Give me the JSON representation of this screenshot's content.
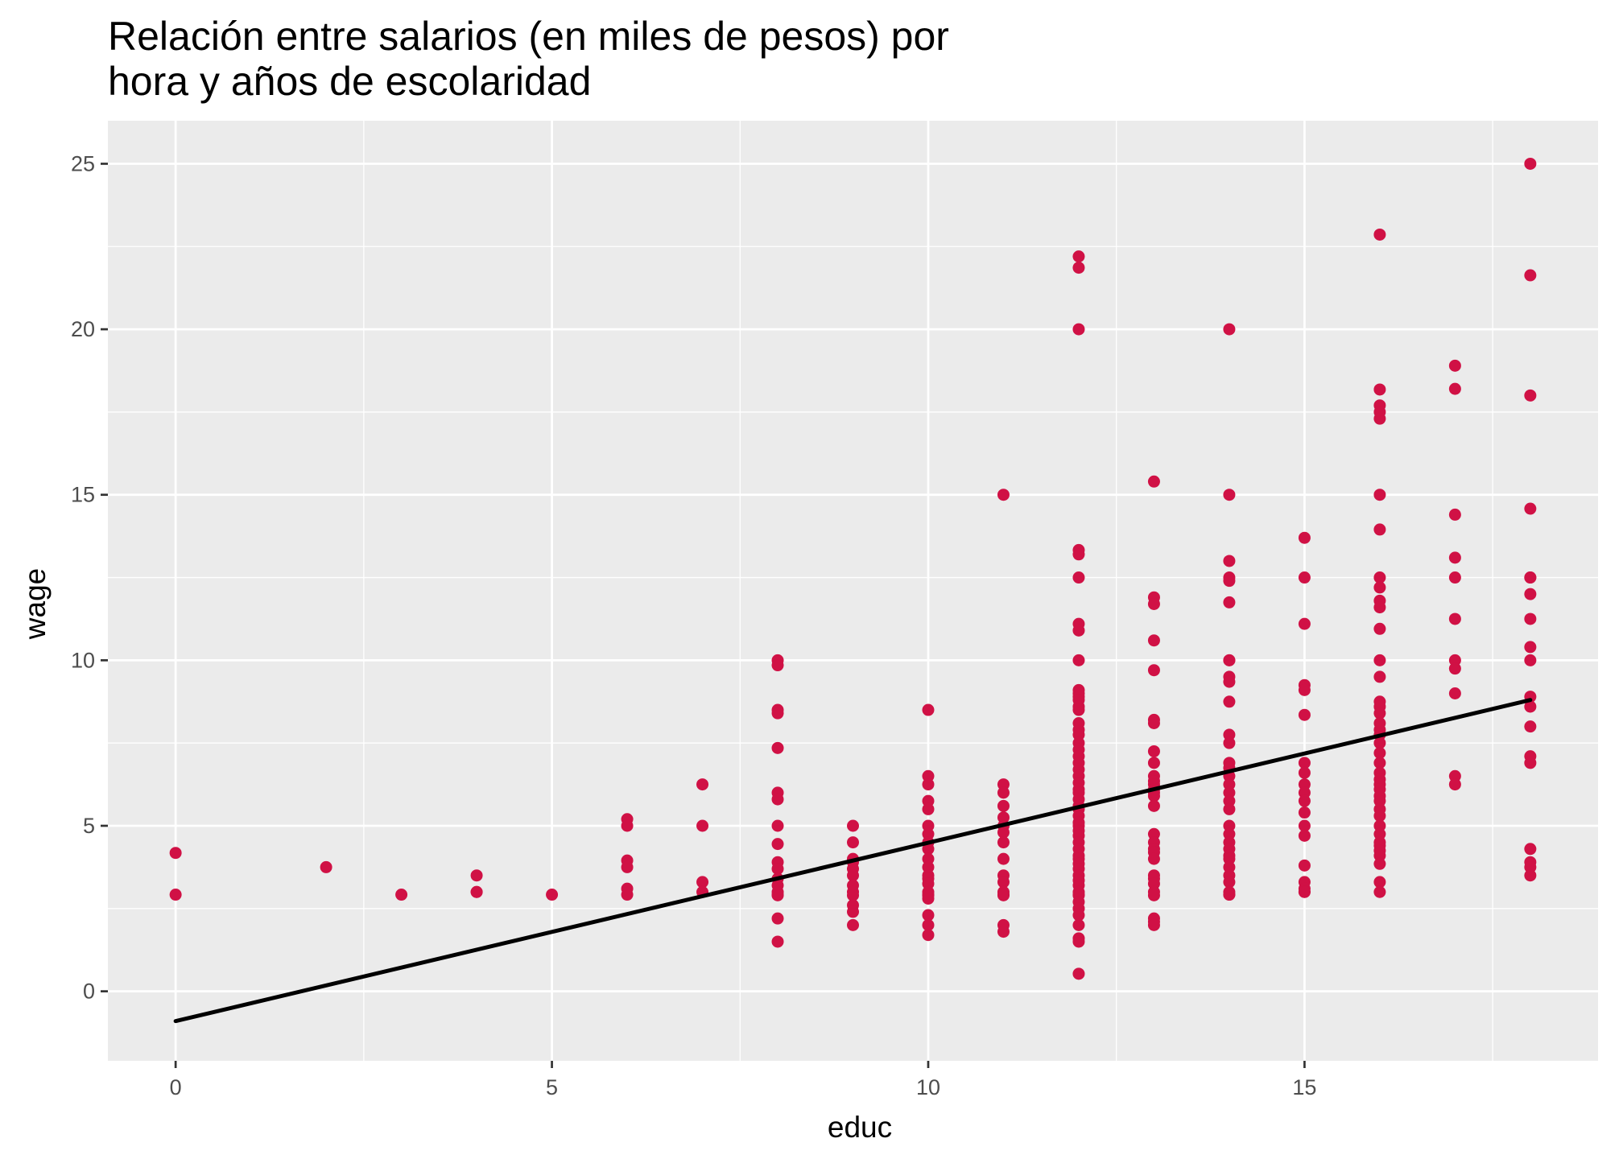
{
  "chart_data": {
    "type": "scatter",
    "title_lines": [
      "Relación entre salarios (en miles de pesos) por",
      "hora y años de escolaridad"
    ],
    "xlabel": "educ",
    "ylabel": "wage",
    "xlim": [
      -0.9,
      18.9
    ],
    "ylim": [
      -2.1,
      26.3
    ],
    "x_ticks": [
      0,
      5,
      10,
      15
    ],
    "y_ticks": [
      0,
      5,
      10,
      15,
      20,
      25
    ],
    "x_tick_labels": [
      "0",
      "5",
      "10",
      "15"
    ],
    "y_tick_labels": [
      "0",
      "5",
      "10",
      "15",
      "20",
      "25"
    ],
    "grid": true,
    "colors": {
      "panel": "#ebebeb",
      "grid": "#ffffff",
      "points": "#d01145",
      "line": "#000000"
    },
    "fit_line": {
      "x": [
        0,
        18
      ],
      "y": [
        -0.9,
        8.8
      ]
    },
    "points": [
      [
        0,
        4.18
      ],
      [
        0,
        2.92
      ],
      [
        2,
        3.75
      ],
      [
        3,
        2.92
      ],
      [
        4,
        3.5
      ],
      [
        4,
        3.0
      ],
      [
        4,
        3.0
      ],
      [
        5,
        2.92
      ],
      [
        6,
        5.2
      ],
      [
        6,
        5.0
      ],
      [
        6,
        3.95
      ],
      [
        6,
        3.75
      ],
      [
        6,
        3.1
      ],
      [
        6,
        2.92
      ],
      [
        7,
        6.25
      ],
      [
        7,
        5.0
      ],
      [
        7,
        3.3
      ],
      [
        7,
        3.0
      ],
      [
        8,
        10.0
      ],
      [
        8,
        9.85
      ],
      [
        8,
        8.5
      ],
      [
        8,
        8.4
      ],
      [
        8,
        7.35
      ],
      [
        8,
        6.0
      ],
      [
        8,
        5.8
      ],
      [
        8,
        5.0
      ],
      [
        8,
        4.45
      ],
      [
        8,
        3.9
      ],
      [
        8,
        3.7
      ],
      [
        8,
        3.4
      ],
      [
        8,
        3.2
      ],
      [
        8,
        3.0
      ],
      [
        8,
        2.92
      ],
      [
        8,
        2.9
      ],
      [
        8,
        2.2
      ],
      [
        8,
        1.5
      ],
      [
        9,
        5.0
      ],
      [
        9,
        4.5
      ],
      [
        9,
        4.0
      ],
      [
        9,
        3.9
      ],
      [
        9,
        3.7
      ],
      [
        9,
        3.5
      ],
      [
        9,
        3.2
      ],
      [
        9,
        3.0
      ],
      [
        9,
        2.9
      ],
      [
        9,
        2.6
      ],
      [
        9,
        2.4
      ],
      [
        9,
        2.0
      ],
      [
        10,
        8.5
      ],
      [
        10,
        6.5
      ],
      [
        10,
        6.25
      ],
      [
        10,
        5.75
      ],
      [
        10,
        5.5
      ],
      [
        10,
        5.0
      ],
      [
        10,
        4.75
      ],
      [
        10,
        4.5
      ],
      [
        10,
        4.3
      ],
      [
        10,
        4.0
      ],
      [
        10,
        3.75
      ],
      [
        10,
        3.5
      ],
      [
        10,
        3.4
      ],
      [
        10,
        3.25
      ],
      [
        10,
        3.0
      ],
      [
        10,
        2.92
      ],
      [
        10,
        2.9
      ],
      [
        10,
        2.8
      ],
      [
        10,
        2.3
      ],
      [
        10,
        2.0
      ],
      [
        10,
        1.7
      ],
      [
        11,
        15.0
      ],
      [
        11,
        6.25
      ],
      [
        11,
        6.0
      ],
      [
        11,
        5.6
      ],
      [
        11,
        5.25
      ],
      [
        11,
        5.0
      ],
      [
        11,
        4.8
      ],
      [
        11,
        4.5
      ],
      [
        11,
        4.0
      ],
      [
        11,
        3.5
      ],
      [
        11,
        3.3
      ],
      [
        11,
        3.0
      ],
      [
        11,
        2.92
      ],
      [
        11,
        2.9
      ],
      [
        11,
        2.0
      ],
      [
        11,
        1.8
      ],
      [
        12,
        22.2
      ],
      [
        12,
        21.86
      ],
      [
        12,
        20.0
      ],
      [
        12,
        13.33
      ],
      [
        12,
        13.2
      ],
      [
        12,
        12.5
      ],
      [
        12,
        11.1
      ],
      [
        12,
        10.9
      ],
      [
        12,
        10.0
      ],
      [
        12,
        9.1
      ],
      [
        12,
        9.0
      ],
      [
        12,
        8.9
      ],
      [
        12,
        8.8
      ],
      [
        12,
        8.6
      ],
      [
        12,
        8.5
      ],
      [
        12,
        8.1
      ],
      [
        12,
        7.9
      ],
      [
        12,
        7.75
      ],
      [
        12,
        7.5
      ],
      [
        12,
        7.3
      ],
      [
        12,
        7.1
      ],
      [
        12,
        6.9
      ],
      [
        12,
        6.7
      ],
      [
        12,
        6.5
      ],
      [
        12,
        6.3
      ],
      [
        12,
        6.1
      ],
      [
        12,
        6.0
      ],
      [
        12,
        5.8
      ],
      [
        12,
        5.6
      ],
      [
        12,
        5.5
      ],
      [
        12,
        5.3
      ],
      [
        12,
        5.1
      ],
      [
        12,
        5.0
      ],
      [
        12,
        4.85
      ],
      [
        12,
        4.7
      ],
      [
        12,
        4.5
      ],
      [
        12,
        4.3
      ],
      [
        12,
        4.1
      ],
      [
        12,
        4.0
      ],
      [
        12,
        3.85
      ],
      [
        12,
        3.7
      ],
      [
        12,
        3.5
      ],
      [
        12,
        3.35
      ],
      [
        12,
        3.2
      ],
      [
        12,
        3.0
      ],
      [
        12,
        2.92
      ],
      [
        12,
        2.9
      ],
      [
        12,
        2.7
      ],
      [
        12,
        2.5
      ],
      [
        12,
        2.3
      ],
      [
        12,
        2.0
      ],
      [
        12,
        1.6
      ],
      [
        12,
        1.5
      ],
      [
        12,
        0.53
      ],
      [
        13,
        15.4
      ],
      [
        13,
        11.9
      ],
      [
        13,
        11.7
      ],
      [
        13,
        10.6
      ],
      [
        13,
        9.7
      ],
      [
        13,
        8.2
      ],
      [
        13,
        8.1
      ],
      [
        13,
        7.25
      ],
      [
        13,
        6.9
      ],
      [
        13,
        6.5
      ],
      [
        13,
        6.35
      ],
      [
        13,
        6.25
      ],
      [
        13,
        6.1
      ],
      [
        13,
        6.0
      ],
      [
        13,
        5.9
      ],
      [
        13,
        5.6
      ],
      [
        13,
        4.75
      ],
      [
        13,
        4.5
      ],
      [
        13,
        4.3
      ],
      [
        13,
        4.2
      ],
      [
        13,
        4.0
      ],
      [
        13,
        3.5
      ],
      [
        13,
        3.4
      ],
      [
        13,
        3.25
      ],
      [
        13,
        3.0
      ],
      [
        13,
        2.9
      ],
      [
        13,
        2.2
      ],
      [
        13,
        2.1
      ],
      [
        13,
        2.0
      ],
      [
        14,
        20.0
      ],
      [
        14,
        15.0
      ],
      [
        14,
        13.0
      ],
      [
        14,
        12.5
      ],
      [
        14,
        12.4
      ],
      [
        14,
        11.75
      ],
      [
        14,
        10.0
      ],
      [
        14,
        10.0
      ],
      [
        14,
        9.5
      ],
      [
        14,
        9.35
      ],
      [
        14,
        8.75
      ],
      [
        14,
        7.75
      ],
      [
        14,
        7.5
      ],
      [
        14,
        6.9
      ],
      [
        14,
        6.75
      ],
      [
        14,
        6.5
      ],
      [
        14,
        6.25
      ],
      [
        14,
        6.0
      ],
      [
        14,
        5.75
      ],
      [
        14,
        5.5
      ],
      [
        14,
        5.0
      ],
      [
        14,
        4.75
      ],
      [
        14,
        4.5
      ],
      [
        14,
        4.3
      ],
      [
        14,
        4.1
      ],
      [
        14,
        4.0
      ],
      [
        14,
        3.75
      ],
      [
        14,
        3.5
      ],
      [
        14,
        3.3
      ],
      [
        14,
        3.0
      ],
      [
        14,
        2.92
      ],
      [
        14,
        2.92
      ],
      [
        15,
        13.7
      ],
      [
        15,
        12.5
      ],
      [
        15,
        11.1
      ],
      [
        15,
        9.25
      ],
      [
        15,
        9.1
      ],
      [
        15,
        8.35
      ],
      [
        15,
        6.9
      ],
      [
        15,
        6.6
      ],
      [
        15,
        6.25
      ],
      [
        15,
        6.0
      ],
      [
        15,
        5.75
      ],
      [
        15,
        5.4
      ],
      [
        15,
        5.0
      ],
      [
        15,
        4.7
      ],
      [
        15,
        3.8
      ],
      [
        15,
        3.3
      ],
      [
        15,
        3.1
      ],
      [
        15,
        3.0
      ],
      [
        15,
        3.0
      ],
      [
        16,
        22.86
      ],
      [
        16,
        18.18
      ],
      [
        16,
        17.7
      ],
      [
        16,
        17.5
      ],
      [
        16,
        17.3
      ],
      [
        16,
        15.0
      ],
      [
        16,
        13.95
      ],
      [
        16,
        12.5
      ],
      [
        16,
        12.2
      ],
      [
        16,
        11.8
      ],
      [
        16,
        11.6
      ],
      [
        16,
        10.95
      ],
      [
        16,
        10.0
      ],
      [
        16,
        9.5
      ],
      [
        16,
        8.75
      ],
      [
        16,
        8.6
      ],
      [
        16,
        8.4
      ],
      [
        16,
        8.1
      ],
      [
        16,
        7.9
      ],
      [
        16,
        7.75
      ],
      [
        16,
        7.5
      ],
      [
        16,
        7.2
      ],
      [
        16,
        6.9
      ],
      [
        16,
        6.6
      ],
      [
        16,
        6.4
      ],
      [
        16,
        6.25
      ],
      [
        16,
        6.1
      ],
      [
        16,
        5.9
      ],
      [
        16,
        5.75
      ],
      [
        16,
        5.5
      ],
      [
        16,
        5.3
      ],
      [
        16,
        5.0
      ],
      [
        16,
        4.75
      ],
      [
        16,
        4.5
      ],
      [
        16,
        4.4
      ],
      [
        16,
        4.25
      ],
      [
        16,
        4.1
      ],
      [
        16,
        3.85
      ],
      [
        16,
        3.3
      ],
      [
        16,
        3.0
      ],
      [
        17,
        18.9
      ],
      [
        17,
        18.2
      ],
      [
        17,
        14.4
      ],
      [
        17,
        13.1
      ],
      [
        17,
        12.5
      ],
      [
        17,
        11.25
      ],
      [
        17,
        10.0
      ],
      [
        17,
        9.75
      ],
      [
        17,
        9.0
      ],
      [
        17,
        6.5
      ],
      [
        17,
        6.25
      ],
      [
        18,
        25.0
      ],
      [
        18,
        21.63
      ],
      [
        18,
        18.0
      ],
      [
        18,
        14.58
      ],
      [
        18,
        12.5
      ],
      [
        18,
        12.5
      ],
      [
        18,
        12.0
      ],
      [
        18,
        11.25
      ],
      [
        18,
        10.4
      ],
      [
        18,
        10.0
      ],
      [
        18,
        8.9
      ],
      [
        18,
        8.6
      ],
      [
        18,
        8.0
      ],
      [
        18,
        7.1
      ],
      [
        18,
        6.9
      ],
      [
        18,
        4.3
      ],
      [
        18,
        3.9
      ],
      [
        18,
        3.75
      ],
      [
        18,
        3.5
      ]
    ]
  }
}
